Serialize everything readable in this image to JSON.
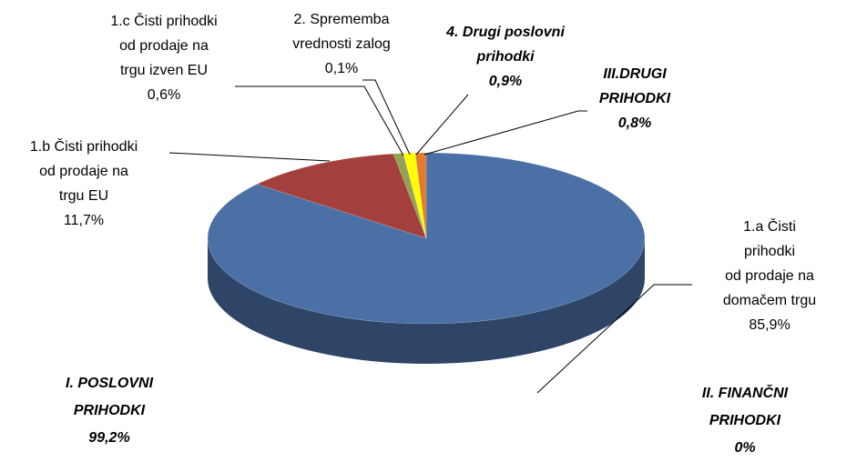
{
  "chart_data": {
    "type": "pie",
    "categories": [
      "1.a Čisti prihodki\nod prodaje na\ndomačem trgu",
      "1.b Čisti prihodki\nod prodaje na\ntrgu EU",
      "1.c Čisti prihodki\nod prodaje na\ntrgu izven EU",
      "2. Sprememba\nvrednosti zalog",
      "4. Drugi poslovni\nprihodki",
      "III.DRUGI\nPRIHODKI"
    ],
    "values": [
      85.9,
      11.7,
      0.6,
      0.1,
      0.9,
      0.8
    ],
    "value_labels": [
      "85,9%",
      "11,7%",
      "0,6%",
      "0,1%",
      "0,9%",
      "0,8%"
    ],
    "colors": [
      "#4a70a6",
      "#a3403d",
      "#8ea54e",
      "#7a5a9a",
      "#ffff00",
      "#e07b30"
    ],
    "annotations": [
      {
        "text": "I. POSLOVNI\nPRIHODKI",
        "value_label": "99,2%"
      },
      {
        "text": "II. FINANČNI\nPRIHODKI",
        "value_label": "0%"
      }
    ]
  }
}
